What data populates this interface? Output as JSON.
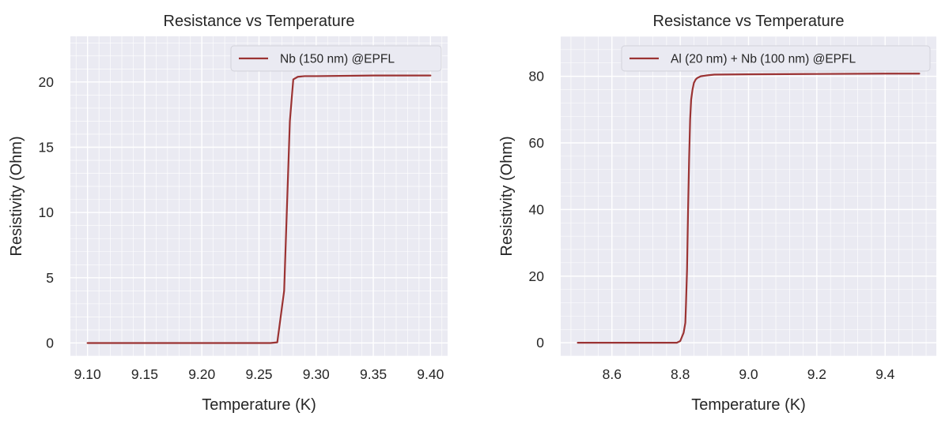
{
  "chart_data": [
    {
      "type": "line",
      "title": "Resistance vs Temperature",
      "xlabel": "Temperature (K)",
      "ylabel": "Resistivity (Ohm)",
      "xlim": [
        9.085,
        9.415
      ],
      "ylim": [
        -1.0,
        23.5
      ],
      "xticks": [
        9.1,
        9.15,
        9.2,
        9.25,
        9.3,
        9.35,
        9.4
      ],
      "xtick_labels": [
        "9.10",
        "9.15",
        "9.20",
        "9.25",
        "9.30",
        "9.35",
        "9.40"
      ],
      "yticks": [
        0,
        5,
        10,
        15,
        20
      ],
      "ytick_labels": [
        "0",
        "5",
        "10",
        "15",
        "20"
      ],
      "grid": true,
      "minor_grid": true,
      "legend_position": "top-right",
      "series": [
        {
          "name": "Nb (150 nm) @EPFL",
          "color": "#9b3333",
          "x": [
            9.1,
            9.15,
            9.2,
            9.25,
            9.26,
            9.266,
            9.272,
            9.277,
            9.28,
            9.284,
            9.29,
            9.3,
            9.35,
            9.4
          ],
          "y": [
            0.0,
            0.0,
            0.0,
            0.0,
            0.0,
            0.05,
            4.0,
            17.0,
            20.2,
            20.4,
            20.45,
            20.45,
            20.5,
            20.5
          ]
        }
      ]
    },
    {
      "type": "line",
      "title": "Resistance vs Temperature",
      "xlabel": "Temperature (K)",
      "ylabel": "Resistivity (Ohm)",
      "xlim": [
        8.45,
        9.55
      ],
      "ylim": [
        -4.0,
        92.0
      ],
      "xticks": [
        8.6,
        8.8,
        9.0,
        9.2,
        9.4
      ],
      "xtick_labels": [
        "8.6",
        "8.8",
        "9.0",
        "9.2",
        "9.4"
      ],
      "yticks": [
        0,
        20,
        40,
        60,
        80
      ],
      "ytick_labels": [
        "0",
        "20",
        "40",
        "60",
        "80"
      ],
      "grid": true,
      "minor_grid": true,
      "legend_position": "top-right",
      "series": [
        {
          "name": "Al (20 nm)  + Nb (100 nm) @EPFL",
          "color": "#9b3333",
          "x": [
            8.5,
            8.7,
            8.79,
            8.8,
            8.81,
            8.815,
            8.817,
            8.82,
            8.823,
            8.826,
            8.829,
            8.832,
            8.836,
            8.84,
            8.845,
            8.85,
            8.86,
            8.88,
            8.9,
            9.0,
            9.2,
            9.4,
            9.5
          ],
          "y": [
            0.0,
            0.0,
            0.0,
            0.5,
            3.0,
            6.0,
            12.0,
            22.0,
            40.0,
            55.0,
            67.0,
            73.0,
            76.0,
            78.0,
            79.0,
            79.5,
            80.0,
            80.3,
            80.5,
            80.6,
            80.7,
            80.8,
            80.8
          ]
        }
      ]
    }
  ]
}
